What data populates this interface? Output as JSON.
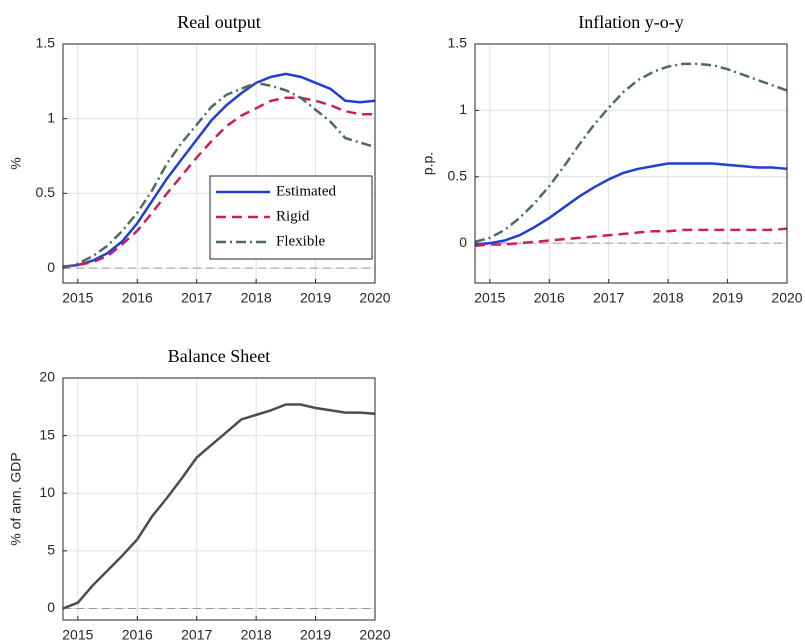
{
  "chart_data": [
    {
      "type": "line",
      "title": "Real output",
      "ylabel": "%",
      "x": [
        2014.75,
        2015,
        2015.25,
        2015.5,
        2015.75,
        2016,
        2016.25,
        2016.5,
        2016.75,
        2017,
        2017.25,
        2017.5,
        2017.75,
        2018,
        2018.25,
        2018.5,
        2018.75,
        2019,
        2019.25,
        2019.5,
        2019.75,
        2020
      ],
      "series": [
        {
          "name": "Estimated",
          "color": "#1f3fcf",
          "dash": "solid",
          "values": [
            0.01,
            0.02,
            0.05,
            0.1,
            0.18,
            0.3,
            0.45,
            0.6,
            0.73,
            0.86,
            0.99,
            1.09,
            1.17,
            1.24,
            1.28,
            1.3,
            1.28,
            1.24,
            1.2,
            1.12,
            1.11,
            1.12
          ]
        },
        {
          "name": "Rigid",
          "color": "#cc1f5a",
          "dash": "dashed",
          "values": [
            0.01,
            0.02,
            0.04,
            0.08,
            0.16,
            0.25,
            0.37,
            0.5,
            0.62,
            0.74,
            0.85,
            0.95,
            1.02,
            1.07,
            1.12,
            1.14,
            1.14,
            1.12,
            1.09,
            1.05,
            1.03,
            1.03
          ]
        },
        {
          "name": "Flexible",
          "color": "#4f6b5f",
          "dash": "dashdot",
          "values": [
            0,
            0.03,
            0.08,
            0.15,
            0.25,
            0.37,
            0.52,
            0.7,
            0.84,
            0.96,
            1.08,
            1.16,
            1.2,
            1.24,
            1.22,
            1.19,
            1.14,
            1.06,
            0.98,
            0.87,
            0.84,
            0.81
          ]
        }
      ],
      "xlim": [
        2014.75,
        2020
      ],
      "xticks": [
        2015,
        2016,
        2017,
        2018,
        2019,
        2020
      ],
      "ylim": [
        -0.1,
        1.5
      ],
      "yticks": [
        0,
        0.5,
        1,
        1.5
      ],
      "grid": true,
      "legend": "lower right"
    },
    {
      "type": "line",
      "title": "Inflation y-o-y",
      "ylabel": "p.p.",
      "x": [
        2014.75,
        2015,
        2015.25,
        2015.5,
        2015.75,
        2016,
        2016.25,
        2016.5,
        2016.75,
        2017,
        2017.25,
        2017.5,
        2017.75,
        2018,
        2018.25,
        2018.5,
        2018.75,
        2019,
        2019.25,
        2019.5,
        2019.75,
        2020
      ],
      "series": [
        {
          "name": "Estimated",
          "color": "#1f3fcf",
          "dash": "solid",
          "values": [
            -0.01,
            0,
            0.02,
            0.06,
            0.12,
            0.19,
            0.27,
            0.35,
            0.42,
            0.48,
            0.53,
            0.56,
            0.58,
            0.6,
            0.6,
            0.6,
            0.6,
            0.59,
            0.58,
            0.57,
            0.57,
            0.56
          ]
        },
        {
          "name": "Rigid",
          "color": "#cc1f5a",
          "dash": "dashed",
          "values": [
            -0.02,
            -0.01,
            -0.01,
            0,
            0.01,
            0.02,
            0.03,
            0.04,
            0.05,
            0.06,
            0.07,
            0.08,
            0.09,
            0.09,
            0.1,
            0.1,
            0.1,
            0.1,
            0.1,
            0.1,
            0.1,
            0.11
          ]
        },
        {
          "name": "Flexible",
          "color": "#4f6b5f",
          "dash": "dashdot",
          "values": [
            0.01,
            0.04,
            0.1,
            0.19,
            0.3,
            0.43,
            0.58,
            0.74,
            0.89,
            1.02,
            1.14,
            1.23,
            1.29,
            1.33,
            1.35,
            1.35,
            1.34,
            1.31,
            1.27,
            1.23,
            1.19,
            1.15
          ]
        }
      ],
      "xlim": [
        2014.75,
        2020
      ],
      "xticks": [
        2015,
        2016,
        2017,
        2018,
        2019,
        2020
      ],
      "ylim": [
        -0.3,
        1.5
      ],
      "yticks": [
        0,
        0.5,
        1,
        1.5
      ],
      "grid": true
    },
    {
      "type": "line",
      "title": "Balance Sheet",
      "ylabel": "% of ann. GDP",
      "x": [
        2014.75,
        2015,
        2015.25,
        2015.5,
        2015.75,
        2016,
        2016.25,
        2016.5,
        2016.75,
        2017,
        2017.25,
        2017.5,
        2017.75,
        2018,
        2018.25,
        2018.5,
        2018.75,
        2019,
        2019.25,
        2019.5,
        2019.75,
        2020
      ],
      "series": [
        {
          "color": "#4d4d4d",
          "dash": "solid",
          "values": [
            0,
            0.5,
            2,
            3.3,
            4.6,
            6,
            8,
            9.6,
            11.3,
            13.1,
            14.2,
            15.3,
            16.4,
            16.8,
            17.2,
            17.7,
            17.7,
            17.4,
            17.2,
            17.0,
            17.0,
            16.9
          ]
        }
      ],
      "xlim": [
        2014.75,
        2020
      ],
      "xticks": [
        2015,
        2016,
        2017,
        2018,
        2019,
        2020
      ],
      "ylim": [
        -1,
        20
      ],
      "yticks": [
        0,
        5,
        10,
        15,
        20
      ],
      "grid": true
    }
  ]
}
